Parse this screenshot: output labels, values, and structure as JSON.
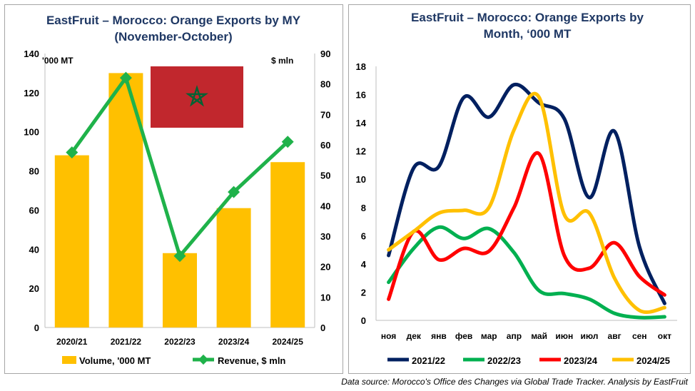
{
  "source_note": "Data source: Morocco's Office des Changes via Global Trade Tracker. Analysis by  EastFruit",
  "chart_data": [
    {
      "type": "bar",
      "title": "EastFruit – Morocco: Orange Exports by MY",
      "subtitle": "(November-October)",
      "left_unit": "'000 MT",
      "right_unit": "$ mln",
      "categories": [
        "2020/21",
        "2021/22",
        "2022/23",
        "2023/24",
        "2024/25"
      ],
      "ylim": [
        0,
        140
      ],
      "y_ticks": [
        0,
        20,
        40,
        60,
        80,
        100,
        120,
        140
      ],
      "y2lim": [
        0,
        90
      ],
      "y2_ticks": [
        0,
        10,
        20,
        30,
        40,
        50,
        60,
        70,
        80,
        90
      ],
      "series": [
        {
          "name": "Volume, '000 MT",
          "kind": "bar",
          "axis": "left",
          "color": "#ffc000",
          "values": [
            88,
            130,
            38,
            61,
            84.5
          ]
        },
        {
          "name": "Revenue, $ mln",
          "kind": "line",
          "axis": "right",
          "color": "#1fb24a",
          "values": [
            57.5,
            82,
            23.5,
            44.5,
            61
          ]
        }
      ],
      "flag": "morocco-flag",
      "grid": false,
      "legend": "bottom"
    },
    {
      "type": "line",
      "title": "EastFruit – Morocco: Orange Exports by",
      "subtitle": "Month, ‘000 MT",
      "categories": [
        "ноя",
        "дек",
        "янв",
        "фев",
        "мар",
        "апр",
        "май",
        "июн",
        "июл",
        "авг",
        "сен",
        "окт"
      ],
      "ylim": [
        0,
        18
      ],
      "y_ticks": [
        0,
        2,
        4,
        6,
        8,
        10,
        12,
        14,
        16,
        18
      ],
      "series": [
        {
          "name": "2021/22",
          "color": "#002060",
          "values": [
            4.6,
            10.8,
            10.9,
            15.8,
            14.4,
            16.7,
            15.4,
            14.3,
            8.7,
            13.4,
            5.2,
            1.2
          ]
        },
        {
          "name": "2022/23",
          "color": "#00b050",
          "values": [
            2.7,
            5.1,
            6.6,
            5.8,
            6.5,
            4.8,
            2.1,
            1.9,
            1.5,
            0.5,
            0.2,
            0.25
          ]
        },
        {
          "name": "2023/24",
          "color": "#ff0000",
          "values": [
            1.5,
            6.3,
            4.3,
            5.1,
            4.9,
            8.0,
            11.8,
            4.6,
            3.7,
            5.5,
            3.1,
            1.8
          ]
        },
        {
          "name": "2024/25",
          "color": "#ffc000",
          "values": [
            5.0,
            6.3,
            7.6,
            7.8,
            8.0,
            13.5,
            15.8,
            7.5,
            7.6,
            3.0,
            0.7,
            0.9
          ]
        }
      ],
      "grid": false,
      "legend": "bottom"
    }
  ]
}
